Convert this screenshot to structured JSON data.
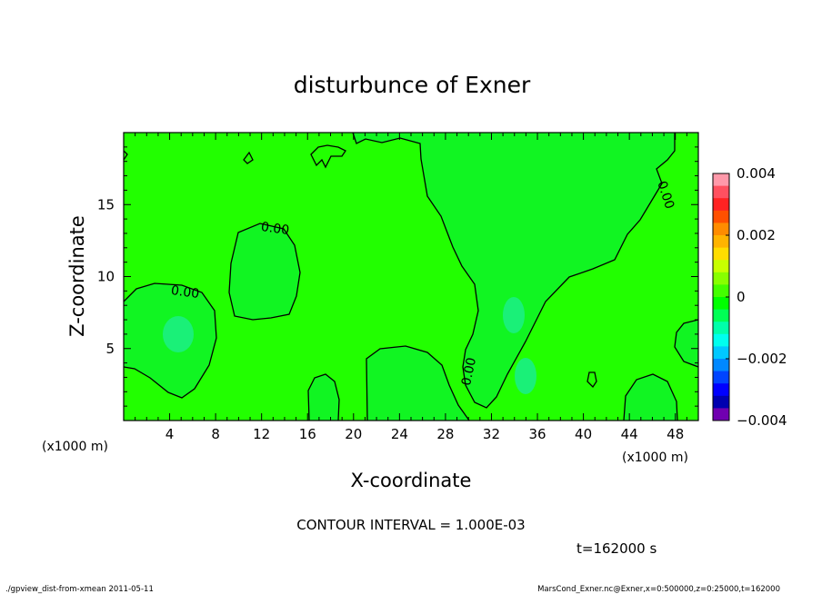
{
  "chart_data": {
    "type": "heatmap",
    "title": "disturbunce of Exner",
    "xlabel": "X-coordinate",
    "ylabel": "Z-coordinate",
    "x_unit_label": "(x1000 m)",
    "y_unit_label": "(x1000 m)",
    "xlim": [
      0,
      50
    ],
    "ylim": [
      0,
      20
    ],
    "x_ticks": [
      4,
      8,
      12,
      16,
      20,
      24,
      28,
      32,
      36,
      40,
      44,
      48
    ],
    "y_ticks": [
      5,
      10,
      15
    ],
    "contour_interval_text": "CONTOUR INTERVAL = 1.000E-03",
    "time_text": "t=162000 s",
    "contour_labels": [
      "0.00",
      "0.00",
      "0.00",
      "0.00"
    ],
    "colorbar": {
      "min": -0.004,
      "max": 0.004,
      "tick_labels": [
        "0.004",
        "0.002",
        "0",
        "−0.002",
        "−0.004"
      ],
      "tick_values": [
        0.004,
        0.002,
        0,
        -0.002,
        -0.004
      ],
      "colors": [
        "#ff99aa",
        "#ff5060",
        "#ff2222",
        "#ff5000",
        "#ff8c00",
        "#ffb400",
        "#ffdd00",
        "#c8ff00",
        "#88ff00",
        "#44ff00",
        "#00ff00",
        "#00ff55",
        "#00ffaa",
        "#00ffee",
        "#00c8ff",
        "#0088ff",
        "#0044ff",
        "#0000ff",
        "#0000b0",
        "#7000b0"
      ]
    },
    "field": {
      "background_color": "#22ff00",
      "negative_color": "#11f522",
      "minimum_color": "#1af078"
    }
  },
  "footer": {
    "left": "./gpview_dist-from-xmean  2011-05-11",
    "right": "MarsCond_Exner.nc@Exner,x=0:500000,z=0:25000,t=162000"
  }
}
